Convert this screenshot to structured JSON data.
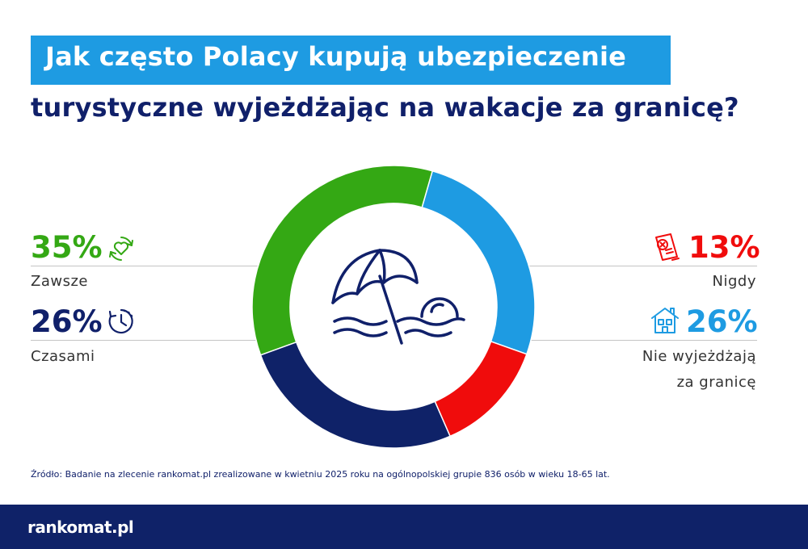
{
  "title": {
    "line1": "Jak często Polacy kupują ubezpieczenie",
    "line2": "turystyczne wyjeżdżając na wakacje za granicę?"
  },
  "chart_data": {
    "type": "pie",
    "donut": true,
    "categories": [
      "Zawsze",
      "Nie wyjeżdżają za granicę",
      "Nigdy",
      "Czasami"
    ],
    "values": [
      35,
      26,
      13,
      26
    ],
    "unit": "%",
    "colors": [
      "#34a814",
      "#1e9be2",
      "#f00c0c",
      "#0f2268"
    ],
    "center_icon": "beach-umbrella-icon"
  },
  "callouts": {
    "zawsze": {
      "value": "35%",
      "label": "Zawsze",
      "icon": "heart-cycle-icon",
      "color": "#34a814"
    },
    "czasami": {
      "value": "26%",
      "label": "Czasami",
      "icon": "clock-icon",
      "color": "#10206a"
    },
    "nigdy": {
      "value": "13%",
      "label": "Nigdy",
      "icon": "rejected-document-icon",
      "color": "#f00c0c"
    },
    "nie_wyjezdzaja": {
      "value": "26%",
      "label_line1": "Nie wyjeżdżają",
      "label_line2": "za granicę",
      "icon": "house-icon",
      "color": "#1e9be2"
    }
  },
  "source": "Źródło: Badanie na zlecenie rankomat.pl zrealizowane w kwietniu 2025 roku na ogólnopolskiej grupie 836 osób w wieku 18-65 lat.",
  "footer": {
    "logo_text": "rankomat.pl"
  }
}
